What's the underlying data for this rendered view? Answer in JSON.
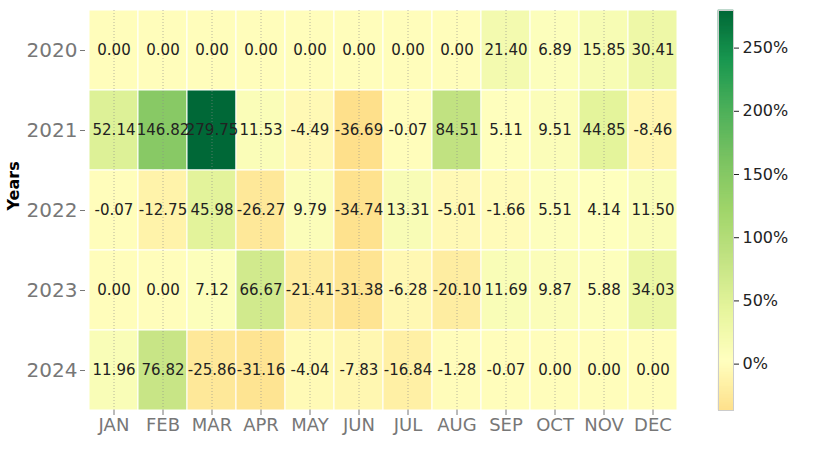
{
  "chart_data": {
    "type": "heatmap",
    "y_label": "Years",
    "x_categories": [
      "JAN",
      "FEB",
      "MAR",
      "APR",
      "MAY",
      "JUN",
      "JUL",
      "AUG",
      "SEP",
      "OCT",
      "NOV",
      "DEC"
    ],
    "y_categories": [
      "2020",
      "2021",
      "2022",
      "2023",
      "2024"
    ],
    "values": [
      [
        0,
        0,
        0,
        0,
        0,
        0,
        0,
        0,
        21.4,
        6.89,
        15.85,
        30.41
      ],
      [
        52.14,
        146.82,
        279.75,
        11.53,
        -4.49,
        -36.69,
        -0.07,
        84.51,
        5.11,
        9.51,
        44.85,
        -8.46
      ],
      [
        -0.07,
        -12.75,
        45.98,
        -26.27,
        9.79,
        -34.74,
        13.31,
        -5.01,
        -1.66,
        5.51,
        4.14,
        11.5
      ],
      [
        0,
        0,
        7.12,
        66.67,
        -21.41,
        -31.38,
        -6.28,
        -20.1,
        11.69,
        9.87,
        5.88,
        34.03
      ],
      [
        11.96,
        76.82,
        -25.86,
        -31.16,
        -4.04,
        -7.83,
        -16.84,
        -1.28,
        -0.07,
        0,
        0,
        0
      ]
    ],
    "value_labels": [
      [
        "0.00",
        "0.00",
        "0.00",
        "0.00",
        "0.00",
        "0.00",
        "0.00",
        "0.00",
        "21.40",
        "6.89",
        "15.85",
        "30.41"
      ],
      [
        "52.14",
        "146.82",
        "279.75",
        "11.53",
        "-4.49",
        "-36.69",
        "-0.07",
        "84.51",
        "5.11",
        "9.51",
        "44.85",
        "-8.46"
      ],
      [
        "-0.07",
        "-12.75",
        "45.98",
        "-26.27",
        "9.79",
        "-34.74",
        "13.31",
        "-5.01",
        "-1.66",
        "5.51",
        "4.14",
        "11.50"
      ],
      [
        "0.00",
        "0.00",
        "7.12",
        "66.67",
        "-21.41",
        "-31.38",
        "-6.28",
        "-20.10",
        "11.69",
        "9.87",
        "5.88",
        "34.03"
      ],
      [
        "11.96",
        "76.82",
        "-25.86",
        "-31.16",
        "-4.04",
        "-7.83",
        "-16.84",
        "-1.28",
        "-0.07",
        "0.00",
        "0.00",
        "0.00"
      ]
    ],
    "data_labels": true,
    "grid": true,
    "colors": [
      "#fee08b",
      "#ffffbf",
      "#e6f59d",
      "#c3e383",
      "#a0d56a",
      "#7bc362",
      "#4db05a",
      "#1a9850",
      "#006837"
    ],
    "colorbar": {
      "range": [
        -36.69,
        279.75
      ],
      "ticks": [
        {
          "value": 0,
          "label": "0%"
        },
        {
          "value": 50,
          "label": "50%"
        },
        {
          "value": 100,
          "label": "100%"
        },
        {
          "value": 150,
          "label": "150%"
        },
        {
          "value": 200,
          "label": "200%"
        },
        {
          "value": 250,
          "label": "250%"
        }
      ]
    }
  }
}
